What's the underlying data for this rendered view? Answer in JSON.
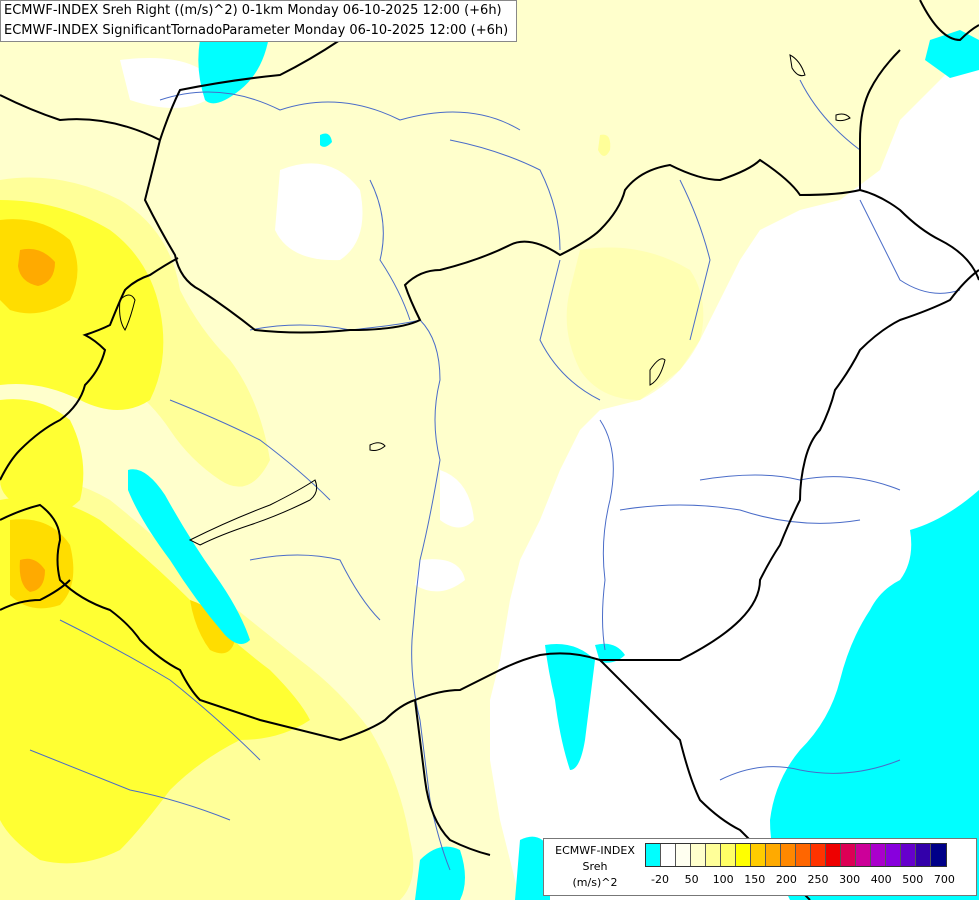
{
  "title": {
    "line1": "ECMWF-INDEX Sreh Right ((m/s)^2) 0-1km Monday 06-10-2025 12:00 (+6h)",
    "line2": "ECMWF-INDEX SignificantTornadoParameter Monday 06-10-2025 12:00 (+6h)"
  },
  "legend": {
    "line1": "ECMWF-INDEX",
    "line2": "Sreh",
    "line3": "(m/s)^2",
    "colors": [
      "#00ffff",
      "#ffffff",
      "#fffff0",
      "#ffffcc",
      "#ffff99",
      "#ffff66",
      "#ffff00",
      "#ffcc00",
      "#ffaa00",
      "#ff8800",
      "#ff6600",
      "#ff3300",
      "#ee0000",
      "#dd0055",
      "#cc0099",
      "#aa00cc",
      "#8800dd",
      "#6600cc",
      "#3300aa",
      "#000088"
    ],
    "ticks": [
      "-20",
      "50",
      "100",
      "150",
      "200",
      "250",
      "300",
      "400",
      "500",
      "700"
    ]
  },
  "map": {
    "palette": {
      "cyan": "#00ffff",
      "pale_yellow": "#ffffcc",
      "light_yellow": "#ffff99",
      "yellow": "#ffff33",
      "gold": "#ffdd00",
      "orange": "#ffaa00",
      "border": "#000000",
      "river": "#4a6cc8"
    }
  }
}
